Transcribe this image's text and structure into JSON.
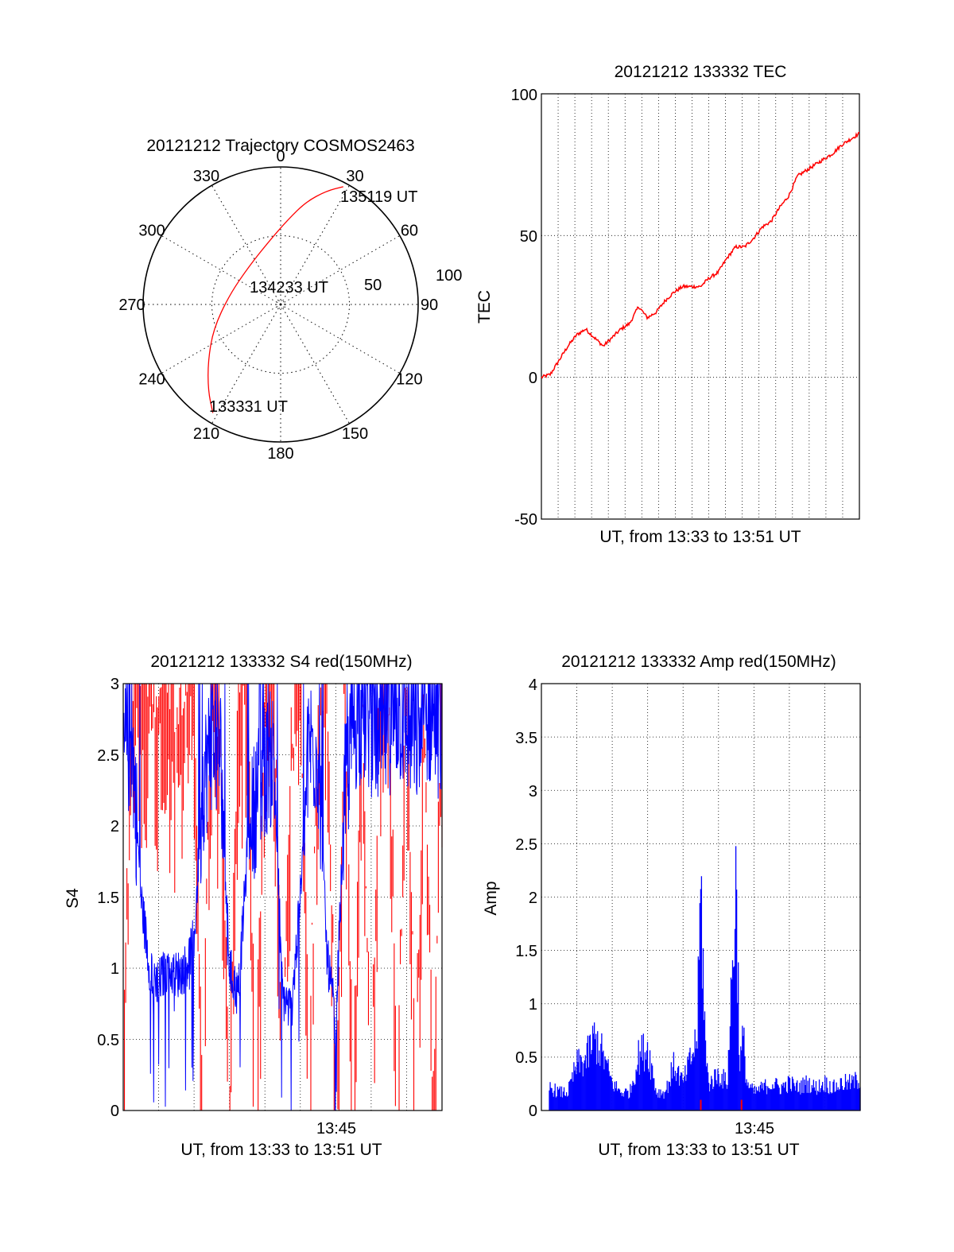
{
  "figure": {
    "polar": {
      "title": "20121212 Trajectory COSMOS2463",
      "azimuth_labels": [
        "0",
        "30",
        "60",
        "90",
        "120",
        "150",
        "180",
        "210",
        "240",
        "270",
        "300",
        "330"
      ],
      "radius_labels": [
        "50",
        "100"
      ],
      "start_label": "133331 UT",
      "mid_label": "134233 UT",
      "end_label": "135119 UT"
    },
    "tec": {
      "title": "20121212 133332 TEC",
      "ylabel": "TEC",
      "xlabel": "UT, from 13:33 to 13:51 UT",
      "ytick_labels": [
        "-50",
        "0",
        "50",
        "100"
      ]
    },
    "s4": {
      "title": "20121212 133332 S4 red(150MHz)",
      "ylabel": "S4",
      "xlabel": "UT, from 13:33 to 13:51 UT",
      "ytick_labels": [
        "0",
        "0.5",
        "1",
        "1.5",
        "2",
        "2.5",
        "3"
      ],
      "xtick_label": "13:45"
    },
    "amp": {
      "title": "20121212 133332 Amp red(150MHz)",
      "ylabel": "Amp",
      "xlabel": "UT, from 13:33 to 13:51 UT",
      "ytick_labels": [
        "0",
        "0.5",
        "1",
        "1.5",
        "2",
        "2.5",
        "3",
        "3.5",
        "4"
      ],
      "xtick_label": "13:45"
    }
  },
  "chart_data": [
    {
      "type": "scatter",
      "projection": "polar",
      "title": "20121212 Trajectory COSMOS2463",
      "azimuth_direction": "clockwise from top",
      "azimuth_ticks_deg": [
        0,
        30,
        60,
        90,
        120,
        150,
        180,
        210,
        240,
        270,
        300,
        330
      ],
      "radius_ticks": [
        50,
        100
      ],
      "rlim": [
        0,
        100
      ],
      "grid": true,
      "series": [
        {
          "color": "#ff0000",
          "points": [
            {
              "az": 212,
              "r": 93
            },
            {
              "az": 220,
              "r": 82
            },
            {
              "az": 232,
              "r": 67
            },
            {
              "az": 250,
              "r": 52
            },
            {
              "az": 280,
              "r": 38
            },
            {
              "az": 320,
              "r": 36
            },
            {
              "az": 350,
              "r": 47
            },
            {
              "az": 5,
              "r": 62
            },
            {
              "az": 14,
              "r": 77
            },
            {
              "az": 22,
              "r": 89
            },
            {
              "az": 28,
              "r": 97
            }
          ]
        }
      ],
      "annotations": [
        {
          "text": "133331 UT",
          "az": 212,
          "r": 93
        },
        {
          "text": "134233 UT",
          "az": 330,
          "r": 17
        },
        {
          "text": "135119 UT",
          "az": 28,
          "r": 97
        }
      ]
    },
    {
      "type": "line",
      "title": "20121212 133332 TEC",
      "xlabel": "UT, from 13:33 to 13:51 UT",
      "ylabel": "TEC",
      "xlim": [
        0,
        18
      ],
      "x_unit": "minutes after 13:33 UT",
      "ylim": [
        -50,
        100
      ],
      "ytick_values": [
        -50,
        0,
        50,
        100
      ],
      "grid": true,
      "series": [
        {
          "color": "#ff0000",
          "x": [
            0,
            0.5,
            1,
            1.5,
            2,
            2.5,
            3,
            3.5,
            4,
            4.5,
            5,
            5.5,
            6,
            6.5,
            7,
            7.5,
            8,
            8.5,
            9,
            9.5,
            10,
            10.5,
            11,
            11.5,
            12,
            12.5,
            13,
            13.5,
            14,
            14.5,
            15,
            15.5,
            16,
            16.5,
            17,
            17.5,
            18
          ],
          "y": [
            0,
            1,
            6,
            11,
            15,
            17,
            14,
            11,
            14,
            17,
            19,
            25,
            21,
            23,
            27,
            30,
            32,
            32,
            32,
            35,
            37,
            42,
            46,
            46,
            49,
            53,
            55,
            60,
            64,
            71,
            73,
            75,
            77,
            79,
            82,
            84,
            86
          ]
        }
      ]
    },
    {
      "type": "line",
      "title": "20121212 133332 S4 red(150MHz)",
      "xlabel": "UT, from 13:33 to 13:51 UT",
      "ylabel": "S4",
      "xlim": [
        0,
        18
      ],
      "x_unit": "minutes after 13:33 UT",
      "xticks": [
        {
          "value": 12,
          "label": "13:45"
        }
      ],
      "ylim": [
        0,
        3
      ],
      "ytick_values": [
        0,
        0.5,
        1,
        1.5,
        2,
        2.5,
        3
      ],
      "grid": true,
      "series": [
        {
          "color": "#0000ff",
          "x": [
            0,
            0.5,
            1,
            1.5,
            2,
            2.5,
            3,
            3.5,
            4,
            4.5,
            5,
            5.5,
            6,
            6.5,
            7,
            7.5,
            8,
            8.5,
            9,
            9.5,
            10,
            10.5,
            11,
            11.5,
            12,
            12.5,
            13,
            13.5,
            14,
            14.5,
            15,
            15.5,
            16,
            16.5,
            17,
            17.5,
            18
          ],
          "y": [
            2.5,
            2.6,
            1.5,
            1.0,
            0.9,
            1.0,
            0.95,
            1.0,
            1.2,
            2.3,
            2.6,
            2.5,
            1.0,
            0.8,
            1.8,
            2.2,
            2.4,
            2.5,
            0.8,
            0.7,
            1.5,
            2.6,
            2.5,
            1.1,
            0.6,
            2.2,
            2.7,
            2.8,
            2.7,
            2.6,
            2.7,
            2.8,
            2.7,
            2.6,
            2.7,
            2.8,
            2.6
          ]
        },
        {
          "color": "#ff0000",
          "x": [
            0,
            0.5,
            1,
            1.5,
            2,
            2.5,
            3,
            3.5,
            4,
            4.5,
            5,
            5.5,
            6,
            6.5,
            7,
            7.5,
            8,
            8.5,
            9,
            9.5,
            10,
            10.5,
            11,
            11.5,
            12,
            12.5,
            13,
            13.5,
            14,
            14.5,
            15,
            15.5,
            16,
            16.5,
            17,
            17.5,
            18
          ],
          "y": [
            0,
            3,
            2.8,
            3,
            2.8,
            3,
            2.7,
            3,
            2.9,
            0,
            3,
            2.6,
            0,
            3,
            2.7,
            0,
            2.8,
            3,
            0,
            2.5,
            3,
            0,
            2.8,
            3,
            0,
            3,
            0,
            2.9,
            0,
            3,
            2.8,
            0,
            3,
            0,
            2.9,
            0,
            3
          ]
        }
      ]
    },
    {
      "type": "line",
      "title": "20121212 133332 Amp red(150MHz)",
      "xlabel": "UT, from 13:33 to 13:51 UT",
      "ylabel": "Amp",
      "xlim": [
        0,
        18
      ],
      "x_unit": "minutes after 13:33 UT",
      "xticks": [
        {
          "value": 12,
          "label": "13:45"
        }
      ],
      "ylim": [
        0,
        4
      ],
      "ytick_values": [
        0,
        0.5,
        1,
        1.5,
        2,
        2.5,
        3,
        3.5,
        4
      ],
      "grid": true,
      "series": [
        {
          "color": "#0000ff",
          "x": [
            0,
            0.5,
            1,
            1.5,
            2,
            2.5,
            3,
            3.5,
            4,
            4.5,
            5,
            5.5,
            6,
            6.5,
            7,
            7.5,
            8,
            8.5,
            8.8,
            9,
            9.3,
            9.5,
            10,
            10.5,
            11,
            11.2,
            11.4,
            11.6,
            12,
            12.5,
            13,
            13.5,
            14,
            14.5,
            15,
            15.5,
            16,
            16.5,
            17,
            17.5,
            18
          ],
          "y": [
            0.2,
            0.25,
            0.2,
            0.2,
            0.5,
            0.55,
            0.8,
            0.6,
            0.3,
            0.2,
            0.2,
            0.6,
            0.7,
            0.2,
            0.2,
            0.5,
            0.3,
            0.6,
            0.8,
            2.45,
            0.5,
            0.3,
            0.4,
            0.3,
            2.55,
            0.5,
            0.8,
            0.3,
            0.2,
            0.25,
            0.3,
            0.25,
            0.3,
            0.25,
            0.3,
            0.25,
            0.3,
            0.25,
            0.3,
            0.3,
            0.35
          ]
        },
        {
          "color": "#ff0000",
          "x": [
            9,
            11.3
          ],
          "y": [
            0.05,
            0.05
          ]
        }
      ]
    }
  ]
}
